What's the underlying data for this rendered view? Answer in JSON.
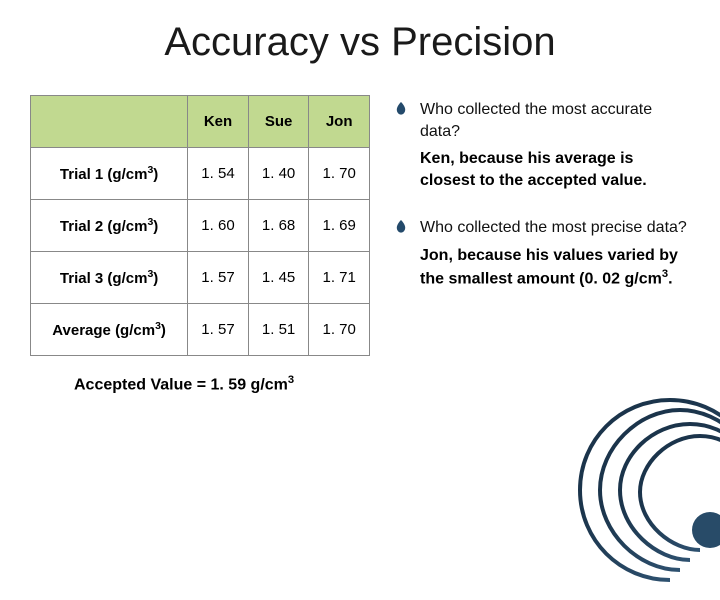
{
  "title": "Accuracy vs Precision",
  "table": {
    "header_bg": "#c1d990",
    "border_color": "#888888",
    "columns": [
      "Ken",
      "Sue",
      "Jon"
    ],
    "rows": [
      {
        "label_plain": "Trial 1 (g/cm3)",
        "cells": [
          "1. 54",
          "1. 40",
          "1. 70"
        ]
      },
      {
        "label_plain": "Trial 2 (g/cm3)",
        "cells": [
          "1. 60",
          "1. 68",
          "1. 69"
        ]
      },
      {
        "label_plain": "Trial 3 (g/cm3)",
        "cells": [
          "1. 57",
          "1. 45",
          "1. 71"
        ]
      },
      {
        "label_plain": "Average (g/cm3)",
        "cells": [
          "1. 57",
          "1. 51",
          "1. 70"
        ]
      }
    ],
    "row_labels_html": [
      "Trial 1 (g/cm<sup>3</sup>)",
      "Trial 2 (g/cm<sup>3</sup>)",
      "Trial 3 (g/cm<sup>3</sup>)",
      "Average (g/cm<sup>3</sup>)"
    ]
  },
  "accepted_value_text": "Accepted Value = 1. 59 g/cm",
  "accepted_value_sup": "3",
  "bullet_color": "#244a6b",
  "questions": [
    {
      "q": "Who collected the most accurate data?",
      "a": "Ken, because his average is closest to the accepted value."
    },
    {
      "q": "Who collected the most precise data?",
      "a": "Jon, because his values varied by the smallest amount (0. 02 g/cm3."
    }
  ],
  "answers_html": [
    "Ken, because his average is closest to the accepted value.",
    "Jon, because his values varied by the smallest amount (0. 02 g/cm<sup>3</sup>."
  ],
  "corner_color": "#244a6b",
  "background_color": "#ffffff"
}
